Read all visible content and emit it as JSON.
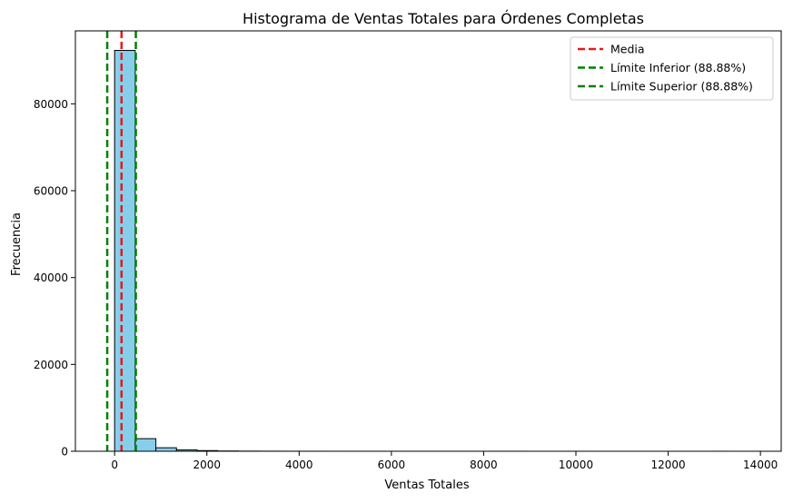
{
  "chart_data": {
    "type": "histogram",
    "title": "Histograma de Ventas Totales para Órdenes Completas",
    "xlabel": "Ventas Totales",
    "ylabel": "Frecuencia",
    "xlim": [
      -850,
      14450
    ],
    "ylim": [
      0,
      96800
    ],
    "x_ticks": [
      0,
      2000,
      4000,
      6000,
      8000,
      10000,
      12000,
      14000
    ],
    "y_ticks": [
      0,
      20000,
      40000,
      60000,
      80000
    ],
    "bin_edges": [
      0,
      447.2,
      894.4,
      1341.6,
      1788.8,
      2236,
      2683.2,
      3130.4,
      3577.6,
      4024.8,
      4472,
      4919.2,
      5366.4,
      5813.6,
      6260.8,
      6708,
      7155.2,
      7602.4,
      8049.6,
      8496.8,
      8944,
      9391.2,
      9838.4,
      10285.6,
      10732.8,
      11180,
      11627.2,
      12074.4,
      12521.6,
      12968.8,
      13416
    ],
    "values": [
      92300,
      2900,
      800,
      300,
      150,
      60,
      30,
      20,
      12,
      8,
      6,
      4,
      3,
      2,
      2,
      1,
      1,
      1,
      1,
      1,
      0,
      0,
      1,
      0,
      0,
      0,
      0,
      0,
      0,
      1
    ],
    "bar_color": "#87CEEB",
    "bar_edge_color": "#000000",
    "vlines": [
      {
        "name": "Media",
        "x": 150,
        "color": "#e41a1c"
      },
      {
        "name": "Límite Inferior (88.88%)",
        "x": -160,
        "color": "#008000"
      },
      {
        "name": "Límite Superior (88.88%)",
        "x": 460,
        "color": "#008000"
      }
    ],
    "legend_position": "top-right",
    "grid": false
  }
}
